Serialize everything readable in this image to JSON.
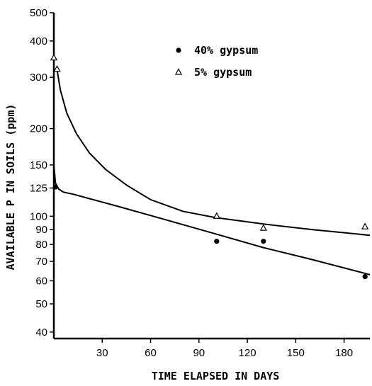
{
  "chart_data": {
    "type": "scatter",
    "xlabel": "TIME ELAPSED IN DAYS",
    "ylabel": "AVAILABLE P IN SOILS (ppm)",
    "xlim": [
      0,
      196
    ],
    "ylim": [
      38,
      500
    ],
    "y_scale": "log",
    "grid": false,
    "legend_position": "top-right",
    "x_ticks": [
      30,
      60,
      90,
      120,
      150,
      180
    ],
    "y_ticks": [
      40,
      50,
      60,
      70,
      80,
      90,
      100,
      125,
      150,
      200,
      300,
      400,
      500
    ],
    "series": [
      {
        "name": "40% gypsum",
        "marker": "circle",
        "points": [
          {
            "x": 1,
            "y": 126
          },
          {
            "x": 101,
            "y": 82
          },
          {
            "x": 130,
            "y": 82
          },
          {
            "x": 193,
            "y": 62
          }
        ],
        "fit_curve": [
          {
            "x": 0,
            "y": 150
          },
          {
            "x": 1,
            "y": 130
          },
          {
            "x": 3,
            "y": 124
          },
          {
            "x": 6,
            "y": 121
          },
          {
            "x": 12,
            "y": 119
          },
          {
            "x": 40,
            "y": 108
          },
          {
            "x": 70,
            "y": 97
          },
          {
            "x": 100,
            "y": 87
          },
          {
            "x": 130,
            "y": 78
          },
          {
            "x": 160,
            "y": 71
          },
          {
            "x": 196,
            "y": 63
          }
        ]
      },
      {
        "name": "5% gypsum",
        "marker": "triangle",
        "points": [
          {
            "x": 0,
            "y": 350
          },
          {
            "x": 2,
            "y": 320
          },
          {
            "x": 101,
            "y": 100
          },
          {
            "x": 130,
            "y": 91
          },
          {
            "x": 193,
            "y": 92
          }
        ],
        "fit_curve": [
          {
            "x": 2,
            "y": 318
          },
          {
            "x": 4,
            "y": 272
          },
          {
            "x": 8,
            "y": 226
          },
          {
            "x": 14,
            "y": 192
          },
          {
            "x": 22,
            "y": 165
          },
          {
            "x": 32,
            "y": 145
          },
          {
            "x": 45,
            "y": 128
          },
          {
            "x": 60,
            "y": 114
          },
          {
            "x": 80,
            "y": 104
          },
          {
            "x": 100,
            "y": 99
          },
          {
            "x": 130,
            "y": 94
          },
          {
            "x": 160,
            "y": 90
          },
          {
            "x": 196,
            "y": 86
          }
        ]
      }
    ]
  }
}
